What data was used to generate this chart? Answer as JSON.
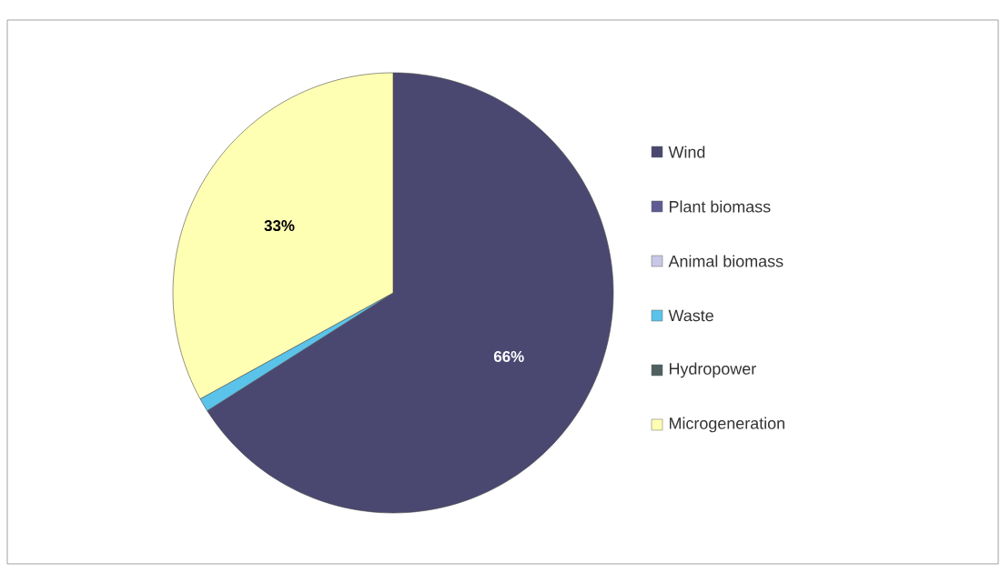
{
  "chart_data": {
    "type": "pie",
    "categories": [
      "Wind",
      "Plant biomass",
      "Animal biomass",
      "Waste",
      "Hydropower",
      "Microgeneration"
    ],
    "values": [
      66,
      0,
      0,
      1,
      0,
      33
    ],
    "colors": [
      "#4a4870",
      "#5e5b94",
      "#c8c8e6",
      "#5bc3ea",
      "#4f6060",
      "#ffffb4"
    ],
    "value_labels": [
      "66%",
      null,
      null,
      null,
      null,
      "33%"
    ],
    "legend": "right"
  }
}
